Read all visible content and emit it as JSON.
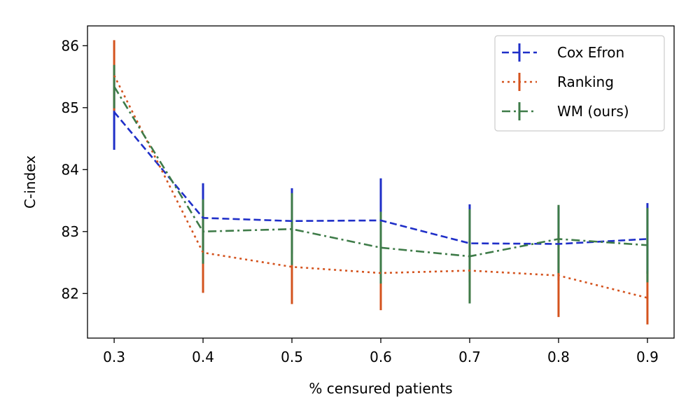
{
  "chart_data": {
    "type": "line",
    "xlabel": "% censured patients",
    "ylabel": "C-index",
    "x": [
      0.3,
      0.4,
      0.5,
      0.6,
      0.7,
      0.8,
      0.9
    ],
    "xticks": [
      "0.3",
      "0.4",
      "0.5",
      "0.6",
      "0.7",
      "0.8",
      "0.9"
    ],
    "xlim": [
      0.27,
      0.93
    ],
    "yticks": [
      "82",
      "83",
      "84",
      "85",
      "86"
    ],
    "ylim": [
      81.28,
      86.32
    ],
    "grid": false,
    "legend_position": "top-right",
    "series": [
      {
        "name": "Cox Efron",
        "color": "#1f2fc8",
        "linestyle": "dashed",
        "values": [
          84.93,
          83.22,
          83.17,
          83.18,
          82.81,
          82.8,
          82.88
        ],
        "err_low": [
          84.32,
          82.66,
          82.64,
          82.52,
          82.18,
          82.21,
          82.32
        ],
        "err_high": [
          85.54,
          83.78,
          83.7,
          83.86,
          83.44,
          83.4,
          83.46
        ]
      },
      {
        "name": "Ranking",
        "color": "#d4531e",
        "linestyle": "dotted",
        "values": [
          85.52,
          82.66,
          82.43,
          82.33,
          82.37,
          82.29,
          81.93
        ],
        "err_low": [
          84.95,
          82.01,
          81.83,
          81.73,
          81.87,
          81.62,
          81.5
        ],
        "err_high": [
          86.09,
          83.3,
          83.03,
          82.93,
          82.87,
          82.96,
          82.36
        ]
      },
      {
        "name": "WM (ours)",
        "color": "#3e7b48",
        "linestyle": "dashdot",
        "values": [
          85.34,
          83.0,
          83.04,
          82.74,
          82.6,
          82.88,
          82.78
        ],
        "err_low": [
          84.99,
          82.48,
          82.46,
          82.16,
          81.84,
          82.33,
          82.18
        ],
        "err_high": [
          85.69,
          83.52,
          83.62,
          83.32,
          83.36,
          83.43,
          83.38
        ]
      }
    ]
  }
}
